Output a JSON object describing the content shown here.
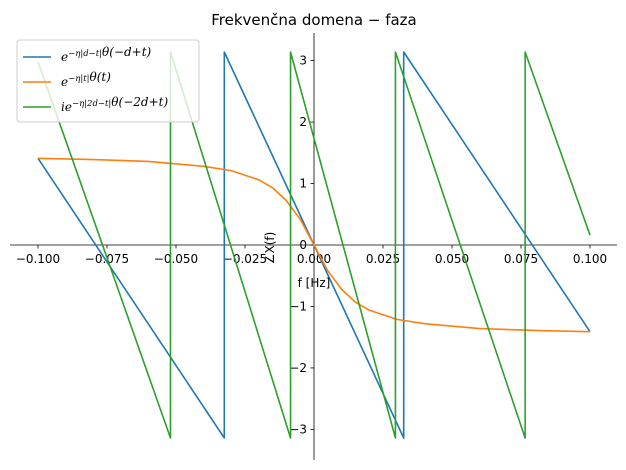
{
  "chart_data": {
    "type": "line",
    "title": "Frekvenčna domena − faza",
    "xlabel": "f [Hz]",
    "ylabel": "∠X(f)",
    "xlim": [
      -0.1,
      0.1
    ],
    "ylim": [
      -3.14,
      3.14
    ],
    "x_ticks": [
      "−0.100",
      "−0.075",
      "−0.050",
      "−0.025",
      "0.000",
      "0.025",
      "0.050",
      "0.075",
      "0.100"
    ],
    "x_tick_values": [
      -0.1,
      -0.075,
      -0.05,
      -0.025,
      0.0,
      0.025,
      0.05,
      0.075,
      0.1
    ],
    "y_ticks": [
      "−3",
      "−2",
      "−1",
      "0",
      "1",
      "2",
      "3"
    ],
    "y_tick_values": [
      -3,
      -2,
      -1,
      0,
      1,
      2,
      3
    ],
    "grid": false,
    "legend_position": "top-left",
    "series": [
      {
        "name": "e^{−η|d−t|}θ(−d+t)",
        "color": "#1f77b4",
        "points": [
          [
            -0.1,
            1.41
          ],
          [
            -0.0325,
            -3.14
          ],
          [
            -0.0325,
            3.14
          ],
          [
            0.0325,
            -3.14
          ],
          [
            0.0325,
            3.14
          ],
          [
            0.1,
            -1.41
          ]
        ]
      },
      {
        "name": "e^{−η|t|}θ(t)",
        "color": "#ff7f0e",
        "points": [
          [
            -0.1,
            1.41
          ],
          [
            -0.08,
            1.39
          ],
          [
            -0.06,
            1.36
          ],
          [
            -0.04,
            1.28
          ],
          [
            -0.03,
            1.21
          ],
          [
            -0.02,
            1.06
          ],
          [
            -0.015,
            0.93
          ],
          [
            -0.01,
            0.72
          ],
          [
            -0.005,
            0.42
          ],
          [
            0.0,
            0.0
          ],
          [
            0.005,
            -0.42
          ],
          [
            0.01,
            -0.72
          ],
          [
            0.015,
            -0.93
          ],
          [
            0.02,
            -1.06
          ],
          [
            0.03,
            -1.21
          ],
          [
            0.04,
            -1.28
          ],
          [
            0.06,
            -1.36
          ],
          [
            0.08,
            -1.39
          ],
          [
            0.1,
            -1.41
          ]
        ]
      },
      {
        "name": "ie^{−η|2d−t|}θ(−2d+t)",
        "color": "#2ca02c",
        "points": [
          [
            -0.1,
            2.98
          ],
          [
            -0.052,
            -3.14
          ],
          [
            -0.052,
            3.14
          ],
          [
            -0.0085,
            -3.14
          ],
          [
            -0.0085,
            3.14
          ],
          [
            0.0295,
            -3.14
          ],
          [
            0.0295,
            3.14
          ],
          [
            0.0765,
            -3.14
          ],
          [
            0.0765,
            3.14
          ],
          [
            0.1,
            0.16
          ]
        ]
      }
    ]
  }
}
